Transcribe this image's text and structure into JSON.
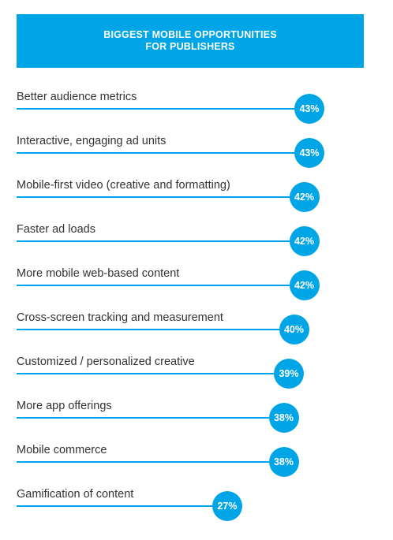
{
  "header": {
    "title_line1": "BIGGEST MOBILE OPPORTUNITIES",
    "title_line2": "FOR PUBLISHERS"
  },
  "colors": {
    "accent": "#00a5e8",
    "label_text": "#333333",
    "bubble_text": "#ffffff"
  },
  "chart_data": {
    "type": "bar",
    "orientation": "horizontal",
    "title": "BIGGEST MOBILE OPPORTUNITIES FOR PUBLISHERS",
    "categories": [
      "Better audience metrics",
      "Interactive, engaging ad units",
      "Mobile-first video (creative and formatting)",
      "Faster ad loads",
      "More mobile web-based content",
      "Cross-screen tracking and measurement",
      "Customized / personalized creative",
      "More app offerings",
      "Mobile commerce",
      "Gamification of content"
    ],
    "values": [
      43,
      43,
      42,
      42,
      42,
      40,
      39,
      38,
      38,
      27
    ],
    "value_labels": [
      "43%",
      "43%",
      "42%",
      "42%",
      "42%",
      "40%",
      "39%",
      "38%",
      "38%",
      "27%"
    ],
    "unit": "%",
    "xlim": [
      0,
      43
    ],
    "grid": false,
    "legend": "none"
  }
}
